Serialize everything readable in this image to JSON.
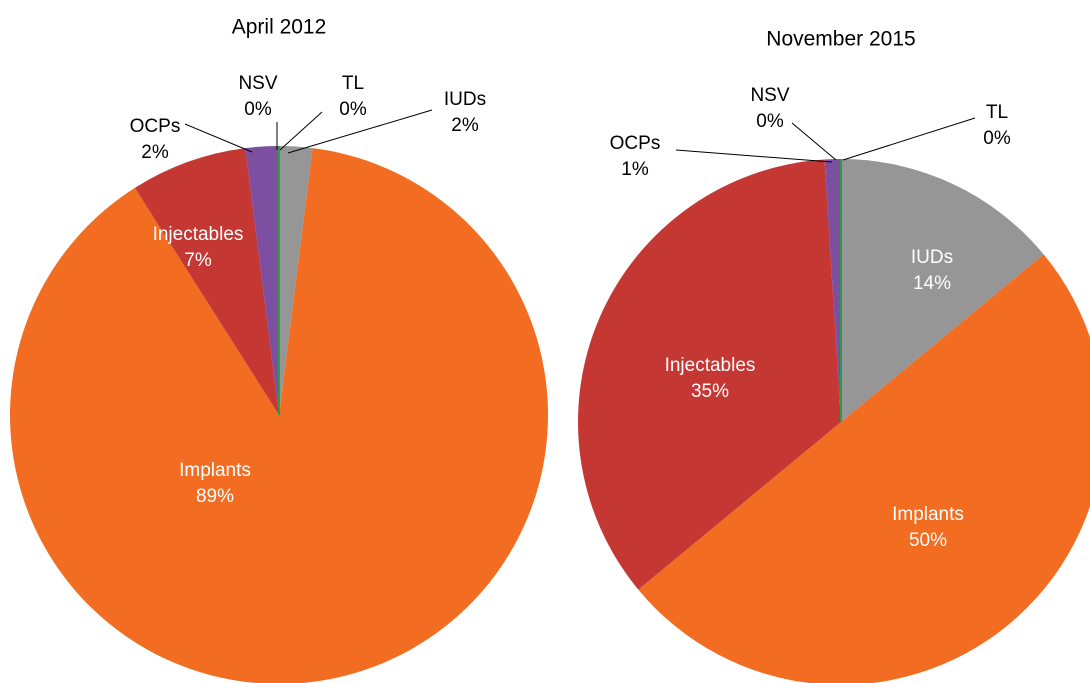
{
  "chart_data": [
    {
      "type": "pie",
      "title": "April 2012",
      "categories": [
        "IUDs",
        "Implants",
        "Injectables",
        "OCPs",
        "NSV",
        "TL"
      ],
      "values": [
        2,
        89,
        7,
        2,
        0,
        0
      ],
      "value_labels": [
        "2%",
        "89%",
        "7%",
        "2%",
        "0%",
        "0%"
      ],
      "colors": [
        "#969696",
        "#f26d21",
        "#c43733",
        "#7c4fa0",
        "#4f81bd",
        "#2e9b4a"
      ]
    },
    {
      "type": "pie",
      "title": "November 2015",
      "categories": [
        "IUDs",
        "Implants",
        "Injectables",
        "OCPs",
        "NSV",
        "TL"
      ],
      "values": [
        14,
        50,
        35,
        1,
        0,
        0
      ],
      "value_labels": [
        "14%",
        "50%",
        "35%",
        "1%",
        "0%",
        "0%"
      ],
      "colors": [
        "#969696",
        "#f26d21",
        "#c43733",
        "#7c4fa0",
        "#4f81bd",
        "#2e9b4a"
      ]
    }
  ]
}
